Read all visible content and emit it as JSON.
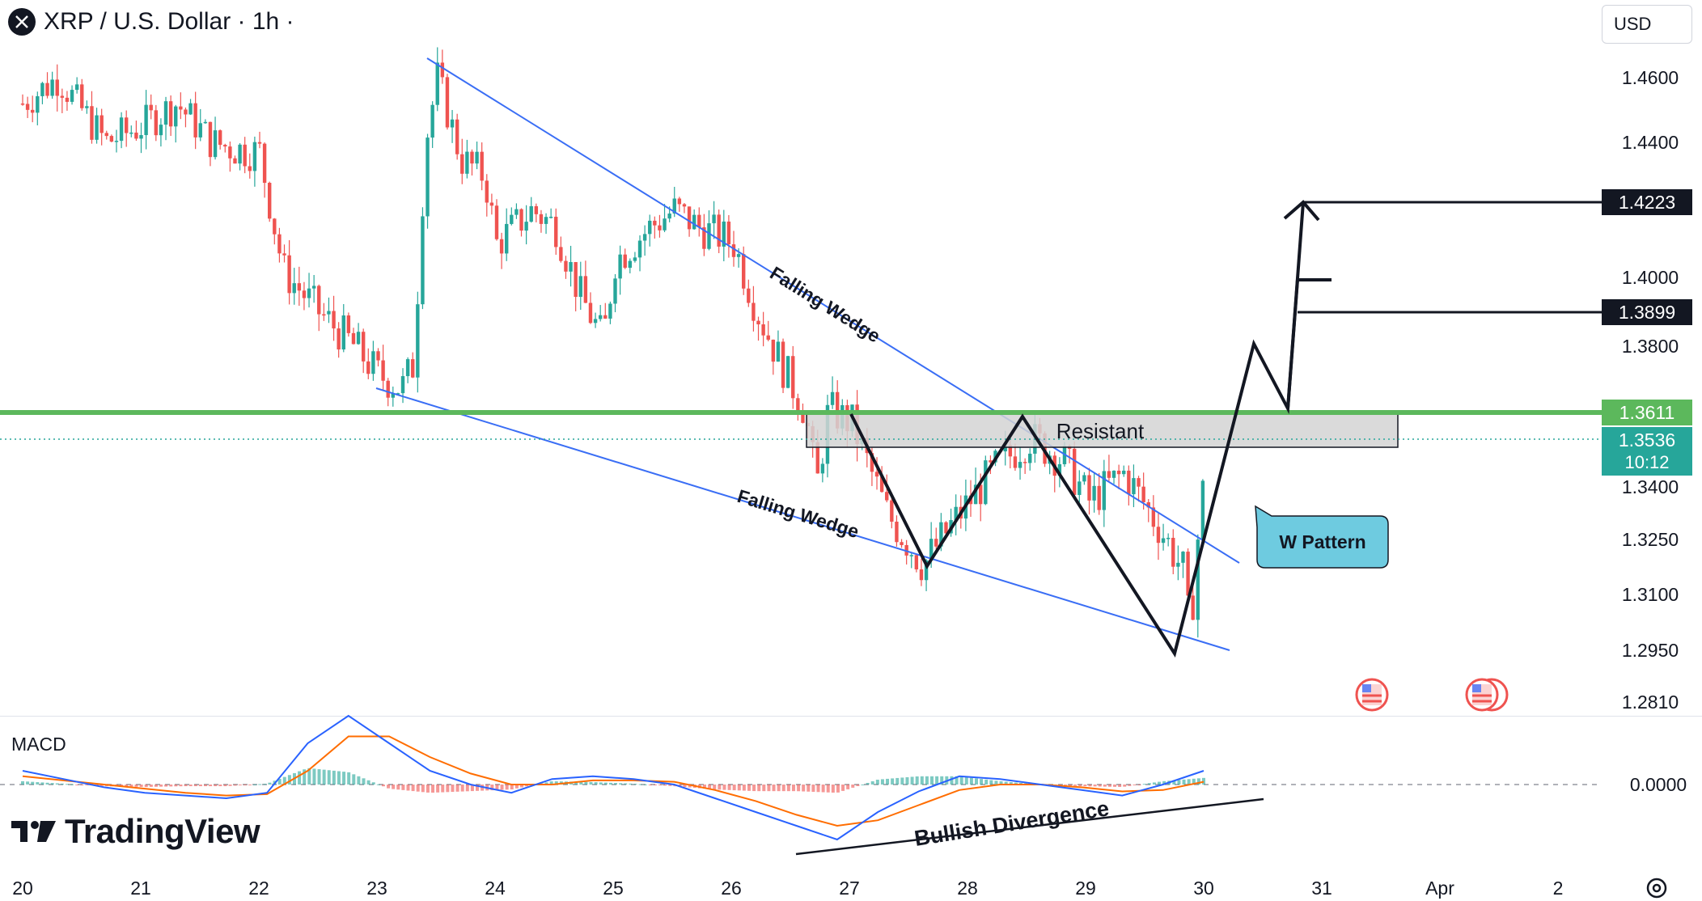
{
  "header": {
    "title": "XRP / U.S. Dollar · 1h ·",
    "currency": "USD"
  },
  "price_axis": {
    "ticks": [
      "1.4600",
      "1.4400",
      "1.4000",
      "1.3800",
      "1.3400",
      "1.3250",
      "1.3100",
      "1.2950",
      "1.2810"
    ],
    "macd_tick": "0.0000"
  },
  "time_axis": {
    "ticks": [
      "20",
      "21",
      "22",
      "23",
      "24",
      "25",
      "26",
      "27",
      "28",
      "29",
      "30",
      "31",
      "Apr",
      "2"
    ]
  },
  "labels": {
    "target_high": "1.4223",
    "target_mid": "1.3899",
    "resistance_price": "1.3611",
    "last_price": "1.3536",
    "countdown": "10:12",
    "resistant": "Resistant",
    "wedge_upper": "Falling Wedge",
    "wedge_lower": "Falling Wedge",
    "w_pattern": "W Pattern",
    "divergence": "Bullish Divergence",
    "macd": "MACD",
    "brand": "TradingView"
  },
  "colors": {
    "up": "#26a69a",
    "down": "#ef5350",
    "wedge": "#3a6ef5",
    "resistance_line": "#4caf50",
    "callout": "#6ecbe0",
    "macd_line": "#2962ff",
    "signal_line": "#ff6d00"
  },
  "chart_data": {
    "type": "candlestick",
    "symbol": "XRP / U.S. Dollar",
    "interval": "1h",
    "y_range": [
      1.281,
      1.469
    ],
    "x_range_days": [
      "20",
      "2 Apr"
    ],
    "key_levels": {
      "resistance": 1.3611,
      "last": 1.3536,
      "target_1": 1.3899,
      "target_2": 1.4223
    },
    "path": [
      [
        20.0,
        1.452
      ],
      [
        20.3,
        1.46
      ],
      [
        20.7,
        1.44
      ],
      [
        21.0,
        1.445
      ],
      [
        21.3,
        1.452
      ],
      [
        21.6,
        1.44
      ],
      [
        21.8,
        1.438
      ],
      [
        22.0,
        1.437
      ],
      [
        22.2,
        1.402
      ],
      [
        22.5,
        1.39
      ],
      [
        22.8,
        1.38
      ],
      [
        23.0,
        1.372
      ],
      [
        23.2,
        1.368
      ],
      [
        23.3,
        1.375
      ],
      [
        23.4,
        1.44
      ],
      [
        23.5,
        1.46
      ],
      [
        23.7,
        1.435
      ],
      [
        23.9,
        1.43
      ],
      [
        24.0,
        1.41
      ],
      [
        24.3,
        1.42
      ],
      [
        24.5,
        1.415
      ],
      [
        24.7,
        1.395
      ],
      [
        24.9,
        1.382
      ],
      [
        25.0,
        1.405
      ],
      [
        25.3,
        1.415
      ],
      [
        25.5,
        1.42
      ],
      [
        25.7,
        1.415
      ],
      [
        25.9,
        1.412
      ],
      [
        26.0,
        1.41
      ],
      [
        26.2,
        1.39
      ],
      [
        26.4,
        1.375
      ],
      [
        26.6,
        1.362
      ],
      [
        26.7,
        1.34
      ],
      [
        26.8,
        1.362
      ],
      [
        27.0,
        1.358
      ],
      [
        27.3,
        1.332
      ],
      [
        27.6,
        1.318
      ],
      [
        27.9,
        1.332
      ],
      [
        28.2,
        1.345
      ],
      [
        28.5,
        1.354
      ],
      [
        28.8,
        1.347
      ],
      [
        29.0,
        1.336
      ],
      [
        29.3,
        1.344
      ],
      [
        29.6,
        1.328
      ],
      [
        29.8,
        1.316
      ],
      [
        29.85,
        1.298
      ],
      [
        29.9,
        1.32
      ],
      [
        30.0,
        1.352
      ]
    ],
    "macd": {
      "macd_line": [
        0.01,
        0.004,
        -0.002,
        -0.006,
        -0.008,
        -0.01,
        -0.006,
        0.03,
        0.05,
        0.03,
        0.01,
        0.0,
        -0.006,
        0.004,
        0.006,
        0.004,
        0.0,
        -0.01,
        -0.02,
        -0.03,
        -0.04,
        -0.02,
        -0.005,
        0.006,
        0.004,
        0.0,
        -0.004,
        -0.008,
        0.0,
        0.01
      ],
      "signal_line": [
        0.006,
        0.003,
        0.0,
        -0.003,
        -0.006,
        -0.008,
        -0.007,
        0.01,
        0.035,
        0.035,
        0.02,
        0.008,
        0.0,
        0.0,
        0.003,
        0.003,
        0.002,
        -0.004,
        -0.012,
        -0.022,
        -0.03,
        -0.026,
        -0.015,
        -0.004,
        0.0,
        0.0,
        -0.002,
        -0.005,
        -0.004,
        0.002
      ]
    }
  }
}
